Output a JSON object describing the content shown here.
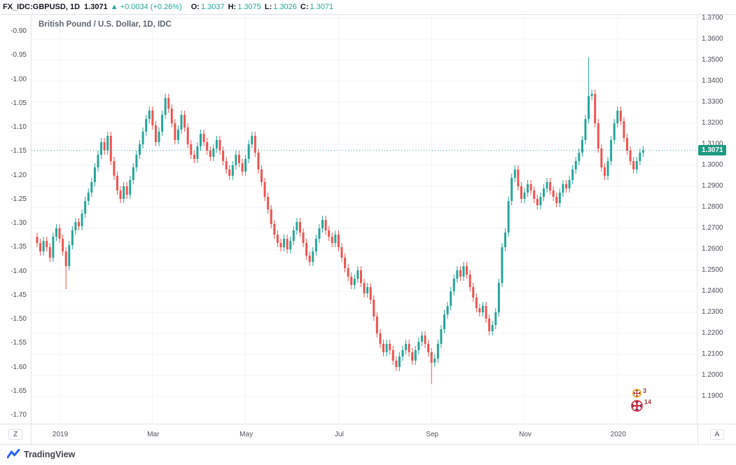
{
  "topbar": {
    "symbol": "FX_IDC:GBPUSD, 1D",
    "price": "1.3071",
    "change_arrow": "▲",
    "change": "+0.0034 (+0.26%)",
    "ohlc": [
      {
        "label": "O:",
        "value": "1.3037"
      },
      {
        "label": "H:",
        "value": "1.3075"
      },
      {
        "label": "L:",
        "value": "1.3026"
      },
      {
        "label": "C:",
        "value": "1.3071"
      }
    ]
  },
  "legend": "British Pound / U.S. Dollar, 1D, IDC",
  "axes": {
    "left_labels": [
      "-0.90",
      "-0.95",
      "-1.00",
      "-1.05",
      "-1.10",
      "-1.15",
      "-1.20",
      "-1.25",
      "-1.30",
      "-1.35",
      "-1.40",
      "-1.45",
      "-1.50",
      "-1.55",
      "-1.60",
      "-1.65",
      "-1.70"
    ],
    "right_labels": [
      "1.3700",
      "1.3600",
      "1.3500",
      "1.3400",
      "1.3300",
      "1.3200",
      "1.3100",
      "1.3000",
      "1.2900",
      "1.2800",
      "1.2700",
      "1.2600",
      "1.2500",
      "1.2400",
      "1.2300",
      "1.2200",
      "1.2100",
      "1.2000",
      "1.1900"
    ],
    "time_ticks": [
      {
        "label": "2019",
        "i": 7
      },
      {
        "label": "Mar",
        "i": 36
      },
      {
        "label": "May",
        "i": 65
      },
      {
        "label": "Jul",
        "i": 94
      },
      {
        "label": "Sep",
        "i": 123
      },
      {
        "label": "Nov",
        "i": 152
      },
      {
        "label": "2020",
        "i": 181
      }
    ]
  },
  "price_line": {
    "value": 1.3071,
    "label": "1.3071",
    "color": "#26a69a",
    "badge_bg": "#1f9a82"
  },
  "corners": {
    "left": "Z",
    "right": "A"
  },
  "badges": [
    {
      "count": "3"
    },
    {
      "count": "14"
    }
  ],
  "footer": {
    "brand": "TradingView",
    "logo_color": "#2962ff"
  },
  "chart_data": {
    "type": "candlestick",
    "title": "British Pound / U.S. Dollar, 1D, IDC",
    "symbol": "GBPUSD",
    "timeframe": "1D",
    "exchange": "IDC",
    "x_tick_labels": [
      "2019",
      "Mar",
      "May",
      "Jul",
      "Sep",
      "Nov",
      "2020"
    ],
    "y_right_range": [
      1.19,
      1.37
    ],
    "y_left_range": [
      -1.7,
      -0.9
    ],
    "last_price": 1.3071,
    "up_color": "#26a69a",
    "down_color": "#ef5350",
    "grid_color": "#f0f3fa",
    "wick_pad": 0.002,
    "first_open": 1.266,
    "closes": [
      1.263,
      1.259,
      1.264,
      1.261,
      1.256,
      1.266,
      1.27,
      1.265,
      1.259,
      1.252,
      1.262,
      1.269,
      1.273,
      1.271,
      1.277,
      1.283,
      1.287,
      1.292,
      1.299,
      1.305,
      1.311,
      1.307,
      1.314,
      1.302,
      1.295,
      1.288,
      1.284,
      1.29,
      1.286,
      1.293,
      1.299,
      1.305,
      1.31,
      1.316,
      1.322,
      1.326,
      1.319,
      1.311,
      1.316,
      1.324,
      1.332,
      1.327,
      1.32,
      1.312,
      1.317,
      1.324,
      1.318,
      1.31,
      1.305,
      1.303,
      1.309,
      1.315,
      1.311,
      1.307,
      1.304,
      1.308,
      1.312,
      1.307,
      1.302,
      1.298,
      1.295,
      1.3,
      1.305,
      1.301,
      1.297,
      1.303,
      1.31,
      1.314,
      1.306,
      1.298,
      1.292,
      1.285,
      1.279,
      1.272,
      1.267,
      1.263,
      1.261,
      1.265,
      1.26,
      1.264,
      1.269,
      1.273,
      1.268,
      1.263,
      1.257,
      1.254,
      1.259,
      1.265,
      1.27,
      1.274,
      1.269,
      1.266,
      1.263,
      1.267,
      1.261,
      1.256,
      1.251,
      1.247,
      1.243,
      1.246,
      1.25,
      1.244,
      1.239,
      1.242,
      1.236,
      1.228,
      1.22,
      1.215,
      1.211,
      1.215,
      1.212,
      1.207,
      1.204,
      1.209,
      1.212,
      1.215,
      1.211,
      1.207,
      1.212,
      1.216,
      1.219,
      1.215,
      1.211,
      1.206,
      1.208,
      1.215,
      1.222,
      1.229,
      1.233,
      1.24,
      1.246,
      1.25,
      1.247,
      1.252,
      1.248,
      1.242,
      1.237,
      1.232,
      1.23,
      1.233,
      1.227,
      1.221,
      1.224,
      1.23,
      1.244,
      1.261,
      1.268,
      1.283,
      1.294,
      1.298,
      1.29,
      1.284,
      1.287,
      1.291,
      1.288,
      1.284,
      1.281,
      1.285,
      1.289,
      1.292,
      1.288,
      1.285,
      1.282,
      1.287,
      1.291,
      1.289,
      1.293,
      1.298,
      1.302,
      1.306,
      1.312,
      1.322,
      1.333,
      1.334,
      1.32,
      1.308,
      1.299,
      1.295,
      1.302,
      1.312,
      1.32,
      1.326,
      1.321,
      1.313,
      1.307,
      1.302,
      1.298,
      1.302,
      1.306,
      1.3071
    ],
    "spikes": [
      {
        "index": 9,
        "low": 1.241
      },
      {
        "index": 123,
        "low": 1.1958
      },
      {
        "index": 172,
        "high": 1.3514
      }
    ]
  }
}
